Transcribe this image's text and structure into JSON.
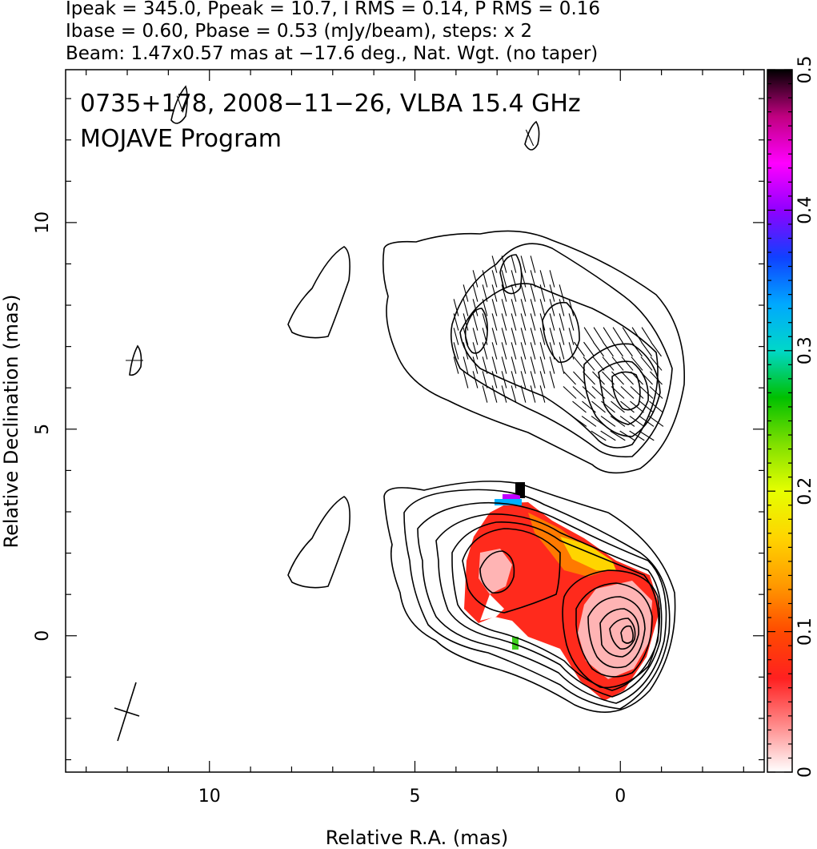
{
  "header": {
    "line1": "Ipeak = 345.0, Ppeak = 10.7, I RMS = 0.14, P RMS = 0.16",
    "line2": "Ibase = 0.60, Pbase = 0.53 (mJy/beam), steps: x 2",
    "line3": "Beam: 1.47x0.57 mas at −17.6 deg., Nat. Wgt. (no taper)"
  },
  "chart_data": {
    "type": "contour",
    "title": "0735+178, 2008−11−26, VLBA 15.4 GHz",
    "subtitle": "MOJAVE Program",
    "xlabel": "Relative R.A. (mas)",
    "ylabel": "Relative Declination (mas)",
    "xlim": [
      13.5,
      -3.5
    ],
    "ylim": [
      -3.3,
      13.7
    ],
    "x_ticks": [
      10,
      5,
      0
    ],
    "x_tick_labels": [
      "10",
      "5",
      "0"
    ],
    "y_ticks": [
      0,
      5,
      10
    ],
    "y_tick_labels": [
      "0",
      "5",
      "10"
    ],
    "colorbar": {
      "range": [
        0,
        0.5
      ],
      "ticks": [
        0,
        0.1,
        0.2,
        0.3,
        0.4,
        0.5
      ],
      "tick_labels": [
        "0",
        "0.1",
        "0.2",
        "0.3",
        "0.4",
        "0.5"
      ],
      "colormap": [
        "#ffffff",
        "#ff8a8a",
        "#ff2020",
        "#ff4a00",
        "#ff9a00",
        "#ffd400",
        "#e6ff00",
        "#80e000",
        "#00c000",
        "#00d8c8",
        "#00a8ff",
        "#1040ff",
        "#9000ff",
        "#ff00ff",
        "#c00080",
        "#000000"
      ]
    },
    "beam": {
      "major_mas": 1.47,
      "minor_mas": 0.57,
      "pa_deg": -17.6
    },
    "contour_levels_mJy": [
      0.6,
      1.2,
      2.4,
      4.8,
      9.6,
      19.2,
      38.4,
      76.8,
      153.6,
      307.2
    ],
    "core": {
      "x": 0,
      "y": 0
    },
    "components": [
      {
        "x": 3.2,
        "y": 1.7
      },
      {
        "x": 1.3,
        "y": 1.5
      },
      {
        "x": 0.05,
        "y": 6.2
      },
      {
        "x": 1.4,
        "y": 7.5
      },
      {
        "x": 3.7,
        "y": 7.5
      }
    ],
    "frac_pol_map": {
      "fill_colors": {
        "main": "#ff2a1c",
        "orange": "#ff7a00",
        "yellow": "#ffd500",
        "pink": "#ffb4b4",
        "top_black": "#000000",
        "top_purple": "#c000ff",
        "top_blue": "#00b0ff",
        "top_green": "#40d020"
      }
    }
  }
}
